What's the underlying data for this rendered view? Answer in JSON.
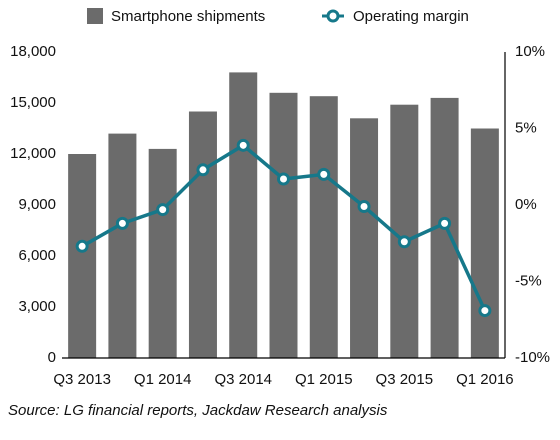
{
  "chart_data": {
    "type": "bar-line",
    "categories": [
      "Q3 2013",
      null,
      "Q1 2014",
      null,
      "Q3 2014",
      null,
      "Q1 2015",
      null,
      "Q3 2015",
      null,
      "Q1 2016"
    ],
    "series": [
      {
        "name": "Smartphone shipments",
        "type": "bar",
        "color": "#6b6b6b",
        "values": [
          12000,
          13200,
          12300,
          14500,
          16800,
          15600,
          15400,
          14100,
          14900,
          15300,
          13500
        ]
      },
      {
        "name": "Operating margin",
        "type": "line",
        "axis": "y2",
        "color": "#16788a",
        "values": [
          -2.7,
          -1.2,
          -0.3,
          2.3,
          3.9,
          1.7,
          2.0,
          -0.1,
          -2.4,
          -1.2,
          -6.9
        ]
      }
    ],
    "ylim": [
      0,
      18000
    ],
    "yticks": [
      0,
      {
        "value": 3000,
        "label": "3,000"
      },
      {
        "value": 6000,
        "label": "6,000"
      },
      {
        "value": 9000,
        "label": "9,000"
      },
      {
        "value": 12000,
        "label": "12,000"
      },
      {
        "value": 15000,
        "label": "15,000"
      },
      {
        "value": 18000,
        "label": "18,000"
      }
    ],
    "y2lim": [
      -10,
      10
    ],
    "y2ticks": [
      {
        "value": -10,
        "label": "-10%"
      },
      {
        "value": -5,
        "label": "-5%"
      },
      {
        "value": 0,
        "label": "0%"
      },
      {
        "value": 5,
        "label": "5%"
      },
      {
        "value": 10,
        "label": "10%"
      }
    ],
    "grid": false,
    "legend": "top",
    "source": "Source: LG financial reports, Jackdaw Research analysis"
  }
}
